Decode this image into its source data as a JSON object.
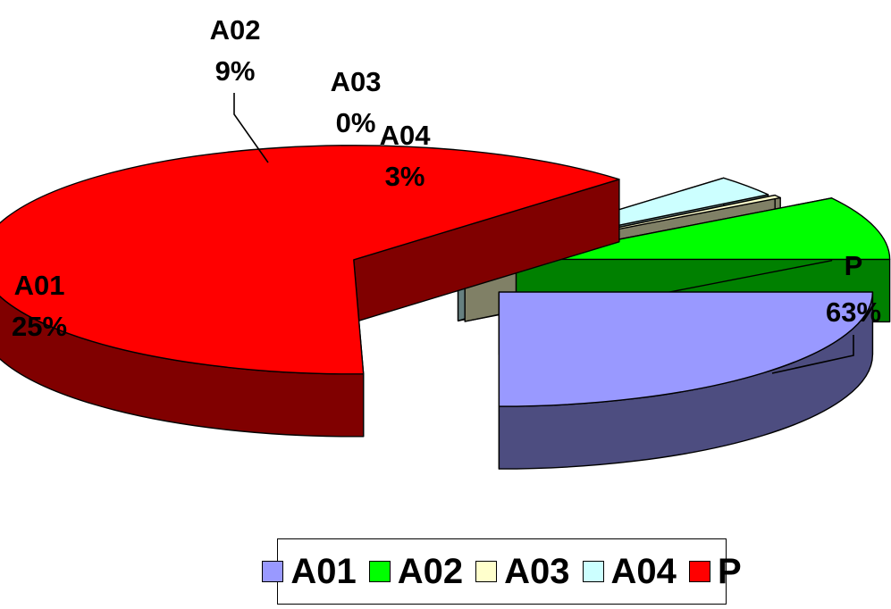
{
  "chart_data": {
    "type": "pie",
    "style": "3d-exploded",
    "categories": [
      "A01",
      "A02",
      "A03",
      "A04",
      "P"
    ],
    "values": [
      25,
      9,
      0,
      3,
      63
    ],
    "unit": "%",
    "slice_labels": [
      {
        "name": "A01",
        "percent": "25%"
      },
      {
        "name": "A02",
        "percent": "9%"
      },
      {
        "name": "A03",
        "percent": "0%"
      },
      {
        "name": "A04",
        "percent": "3%"
      },
      {
        "name": "P",
        "percent": "63%"
      }
    ],
    "colors": [
      "#9999ff",
      "#00ff00",
      "#ffffcc",
      "#ccffff",
      "#ff0000"
    ],
    "side_colors": [
      "#4d4d80",
      "#008000",
      "#808066",
      "#668080",
      "#800000"
    ],
    "legend_position": "bottom",
    "legend": [
      "A01",
      "A02",
      "A03",
      "A04",
      "P"
    ]
  }
}
